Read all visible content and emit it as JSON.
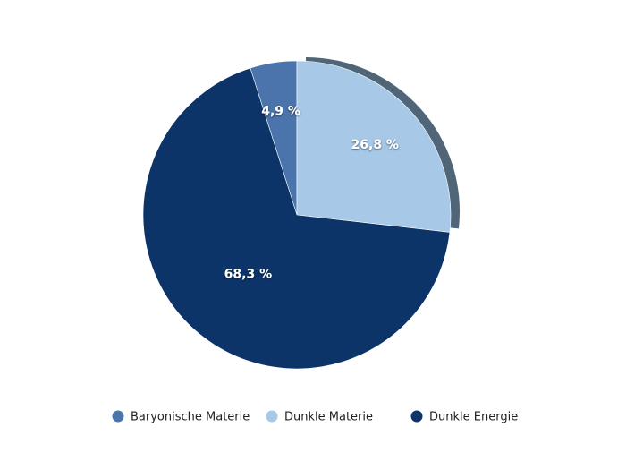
{
  "chart_data": {
    "type": "pie",
    "categories": [
      "Baryonische Materie",
      "Dunkle Materie",
      "Dunkle Energie"
    ],
    "values": [
      4.9,
      26.8,
      68.3
    ],
    "value_labels": [
      "4,9 %",
      "26,8 %",
      "68,3 %"
    ],
    "colors": [
      "#4a74ab",
      "#a7c9e7",
      "#0c3468"
    ]
  }
}
